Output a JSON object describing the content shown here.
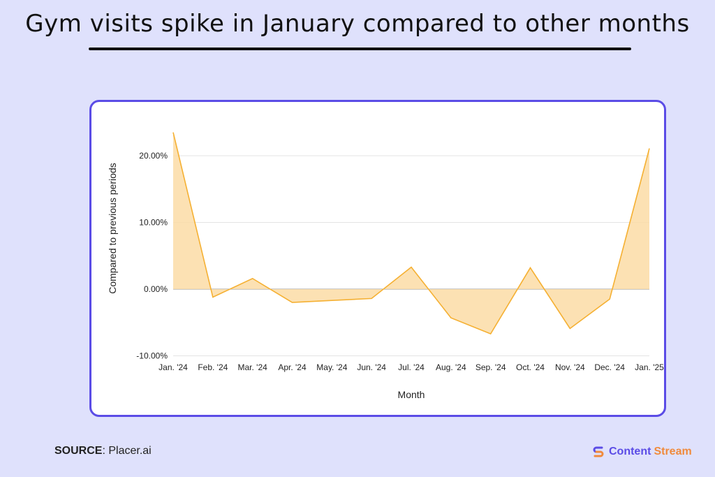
{
  "title": "Gym visits spike in January compared to other months",
  "source": {
    "label": "SOURCE",
    "value": "Placer.ai"
  },
  "brand": {
    "part1": "Content",
    "part2": "Stream",
    "color1": "#5b4ce6",
    "color2": "#f08a3c"
  },
  "colors": {
    "line": "#f5b032",
    "fill": "#fcdca6",
    "card_border": "#5b4ce6",
    "background": "#dfe1fc"
  },
  "chart_data": {
    "type": "area",
    "title": "",
    "xlabel": "Month",
    "ylabel": "Compared to previous periods",
    "categories": [
      "Jan. '24",
      "Feb. '24",
      "Mar. '24",
      "Apr. '24",
      "May. '24",
      "Jun. '24",
      "Jul. '24",
      "Aug. '24",
      "Sep. '24",
      "Oct. '24",
      "Nov. '24",
      "Dec. '24",
      "Jan. '25"
    ],
    "values": [
      23.5,
      -1.2,
      1.6,
      -2.0,
      -1.7,
      -1.4,
      3.3,
      -4.3,
      -6.7,
      3.2,
      -5.9,
      -1.5,
      21.1
    ],
    "yticks": [
      -10,
      0,
      10,
      20
    ],
    "ytick_labels": [
      "-10.00%",
      "0.00%",
      "10.00%",
      "20.00%"
    ],
    "ylim": [
      -10,
      24
    ],
    "grid": true,
    "legend": "none"
  }
}
